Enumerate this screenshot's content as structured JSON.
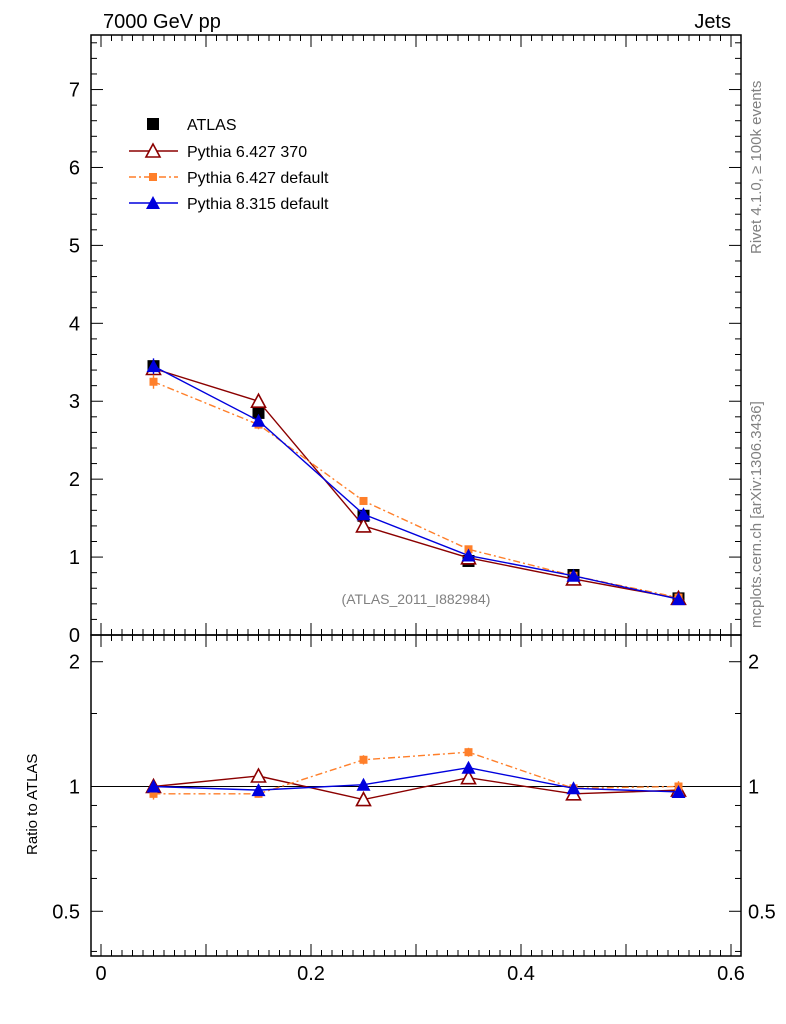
{
  "header": {
    "left": "7000 GeV pp",
    "right": "Jets"
  },
  "side_labels": {
    "top": "Rivet 4.1.0, ≥ 100k events",
    "bottom": "mcplots.cern.ch [arXiv:1306.3436]"
  },
  "analysis_label": "(ATLAS_2011_I882984)",
  "colors": {
    "atlas": "#000000",
    "p6_370": "#8b0000",
    "p6_default": "#ff7f2a",
    "p8_default": "#0000dd"
  },
  "chart_data": [
    {
      "type": "line",
      "panel": "main",
      "xlim": [
        0,
        0.6
      ],
      "ylim": [
        0,
        7.7
      ],
      "y_ticks": [
        0,
        1,
        2,
        3,
        4,
        5,
        6,
        7
      ],
      "y_tick_labels": [
        "0",
        "1",
        "2",
        "3",
        "4",
        "5",
        "6",
        "7"
      ],
      "legend_position": "top-left",
      "x": [
        0.05,
        0.15,
        0.25,
        0.35,
        0.45,
        0.55
      ],
      "series": [
        {
          "name": "ATLAS",
          "marker": "square",
          "values": [
            3.45,
            2.85,
            1.53,
            0.95,
            0.77,
            0.47
          ],
          "errors": [
            0.08,
            0.06,
            0.04,
            0.03,
            0.02,
            0.02
          ]
        },
        {
          "name": "Pythia 6.427 370",
          "marker": "open-triangle",
          "values": [
            3.42,
            3.0,
            1.4,
            0.99,
            0.72,
            0.47
          ],
          "errors": [
            0.06,
            0.06,
            0.04,
            0.03,
            0.02,
            0.02
          ]
        },
        {
          "name": "Pythia 6.427 default",
          "marker": "small-square",
          "values": [
            3.25,
            2.7,
            1.72,
            1.1,
            0.76,
            0.48
          ],
          "errors": [
            0.09,
            0.06,
            0.05,
            0.03,
            0.02,
            0.02
          ]
        },
        {
          "name": "Pythia 8.315 default",
          "marker": "triangle",
          "values": [
            3.45,
            2.75,
            1.55,
            1.02,
            0.76,
            0.46
          ],
          "errors": [
            0.1,
            0.06,
            0.04,
            0.03,
            0.02,
            0.02
          ]
        }
      ]
    },
    {
      "type": "line",
      "panel": "ratio",
      "ylabel": "Ratio to ATLAS",
      "xlim": [
        0,
        0.6
      ],
      "ylim": [
        0.39,
        2.32
      ],
      "y_ticks": [
        0.5,
        1,
        2
      ],
      "y_tick_labels": [
        "0.5",
        "1",
        "2"
      ],
      "x_ticks": [
        0,
        0.2,
        0.4,
        0.6
      ],
      "x_tick_labels": [
        "0",
        "0.2",
        "0.4",
        "0.6"
      ],
      "reference": 1,
      "x": [
        0.05,
        0.15,
        0.25,
        0.35,
        0.45,
        0.55
      ],
      "series": [
        {
          "name": "Pythia 6.427 370",
          "values": [
            1.0,
            1.06,
            0.93,
            1.05,
            0.96,
            0.98
          ],
          "errors": [
            0.02,
            0.02,
            0.02,
            0.02,
            0.02,
            0.02
          ]
        },
        {
          "name": "Pythia 6.427 default",
          "values": [
            0.96,
            0.96,
            1.16,
            1.21,
            0.99,
            1.0
          ],
          "errors": [
            0.03,
            0.02,
            0.03,
            0.03,
            0.02,
            0.03
          ]
        },
        {
          "name": "Pythia 8.315 default",
          "values": [
            1.0,
            0.98,
            1.01,
            1.11,
            0.99,
            0.97
          ],
          "errors": [
            0.03,
            0.02,
            0.03,
            0.03,
            0.03,
            0.03
          ]
        }
      ]
    }
  ]
}
